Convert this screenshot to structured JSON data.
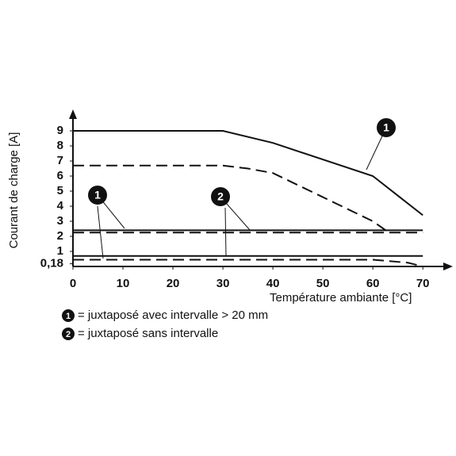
{
  "chart_data": {
    "type": "line",
    "x_label": "Température ambiante [°C]",
    "y_label": "Courant de charge [A]",
    "xlim": [
      0,
      76
    ],
    "ylim": [
      0,
      10
    ],
    "xticks": [
      0,
      10,
      20,
      30,
      40,
      50,
      60,
      70
    ],
    "yticks": [
      {
        "value": 0.18,
        "label": "0,18"
      },
      1,
      2,
      3,
      4,
      5,
      6,
      7,
      8,
      9
    ],
    "series": [
      {
        "style": "solid",
        "color": "#111111",
        "x": [
          0,
          30,
          40,
          60,
          70
        ],
        "values": [
          9,
          9,
          8.2,
          6,
          3.4
        ]
      },
      {
        "style": "dashed",
        "color": "#111111",
        "x": [
          0,
          30,
          35,
          40,
          60,
          63
        ],
        "values": [
          6.7,
          6.7,
          6.5,
          6.2,
          3,
          2.3
        ]
      },
      {
        "style": "solid",
        "color": "#111111",
        "x": [
          0,
          70
        ],
        "values": [
          2.4,
          2.4
        ]
      },
      {
        "style": "dashed",
        "color": "#111111",
        "x": [
          0,
          70
        ],
        "values": [
          2.25,
          2.25
        ]
      },
      {
        "style": "solid",
        "color": "#111111",
        "x": [
          0,
          70
        ],
        "values": [
          0.7,
          0.7
        ]
      },
      {
        "style": "dashed",
        "color": "#111111",
        "x": [
          0,
          60,
          67,
          70
        ],
        "values": [
          0.45,
          0.45,
          0.25,
          0
        ]
      }
    ],
    "callouts": [
      "1",
      "1",
      "2"
    ],
    "legend": [
      {
        "marker": "1",
        "text": "= juxtaposé avec intervalle > 20 mm"
      },
      {
        "marker": "2",
        "text": "= juxtaposé sans intervalle"
      }
    ]
  }
}
